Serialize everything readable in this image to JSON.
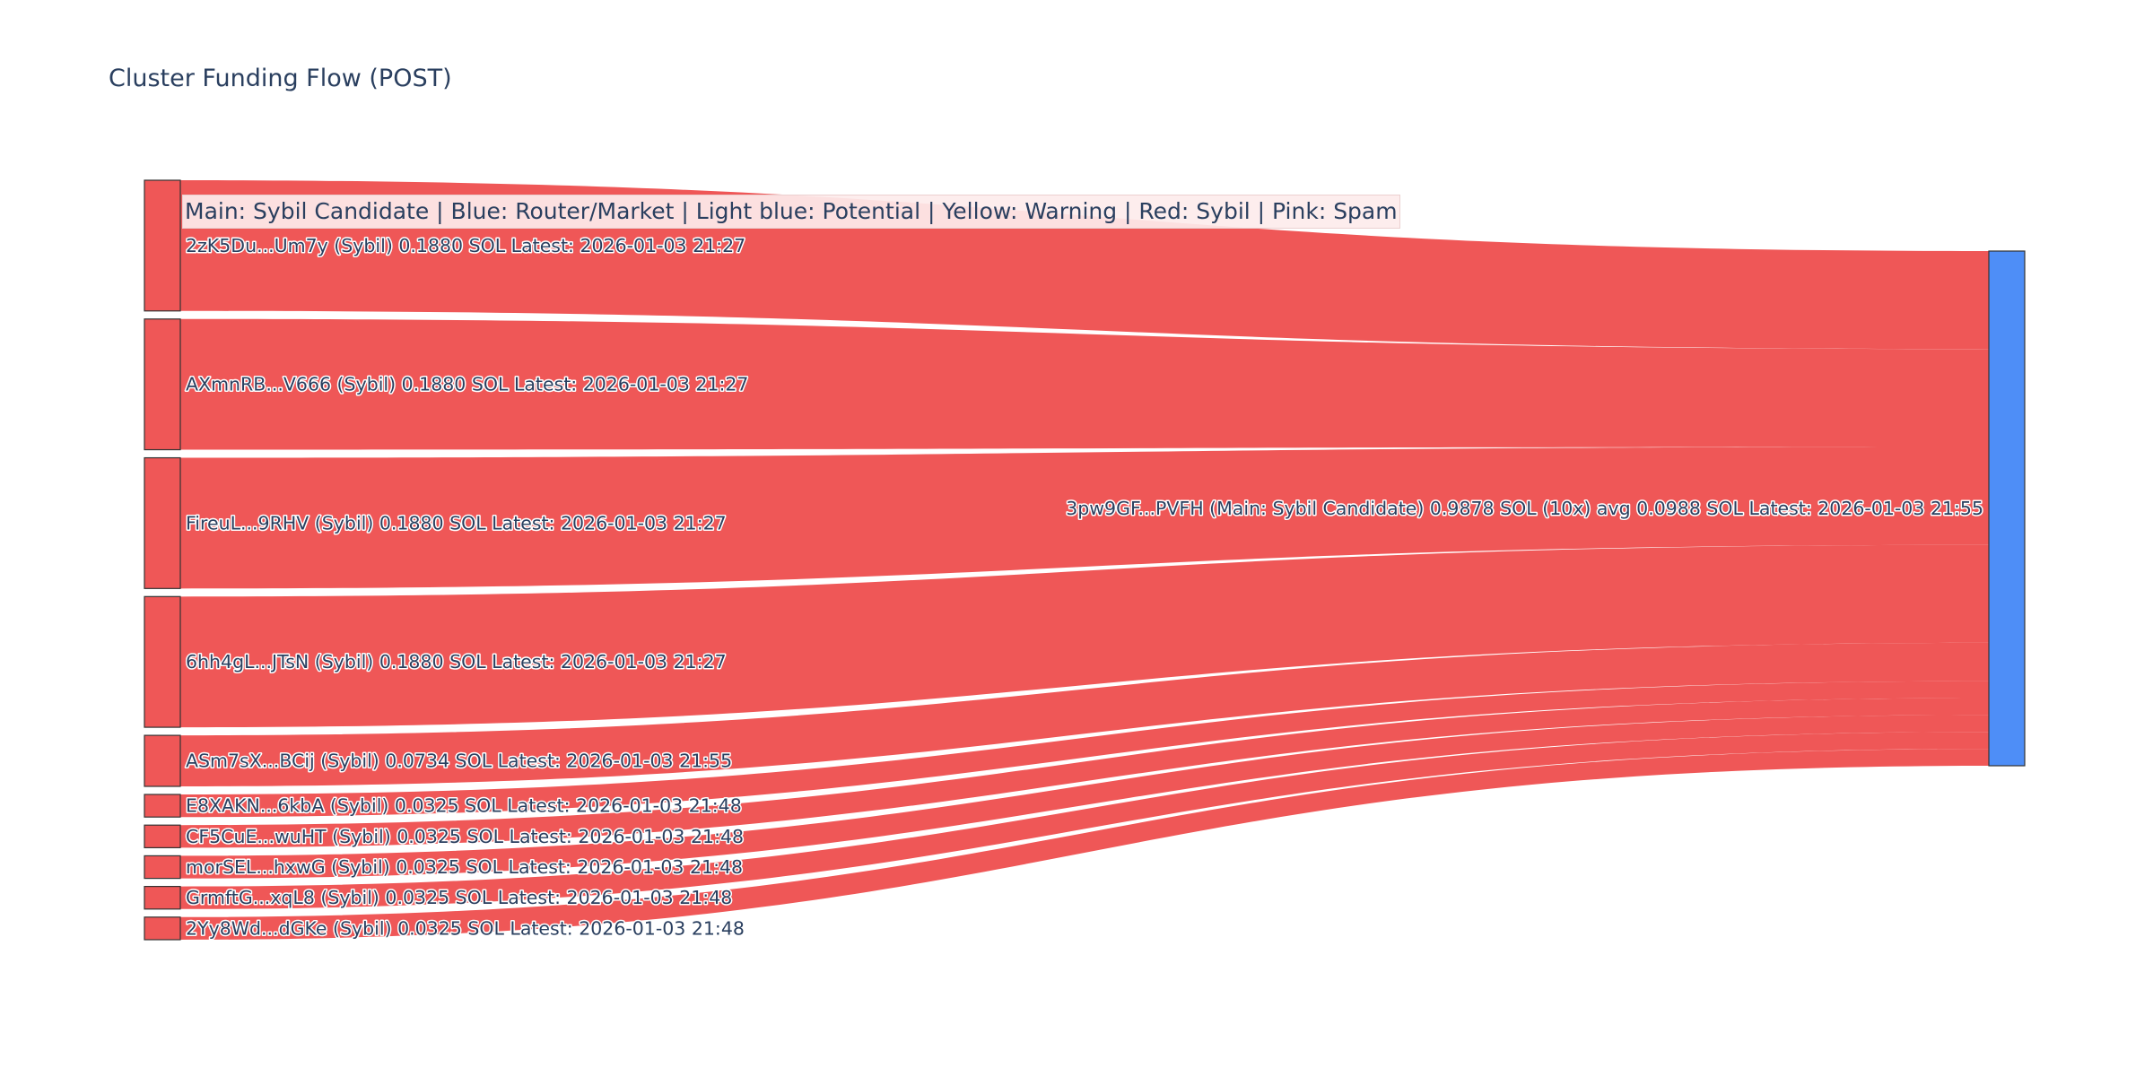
{
  "chart_data": {
    "type": "sankey",
    "title": "Cluster Funding Flow (POST)",
    "legend_text": "Main: Sybil Candidate  |  Blue: Router/Market | Light blue: Potential | Yellow: Warning | Red: Sybil | Pink: Spam",
    "colors": {
      "sybil": "#ef5757",
      "router": "#4e8ef7",
      "node_border": "#333333"
    },
    "target": {
      "id": "3pw9GF...PVFH",
      "label": "3pw9GF...PVFH (Main: Sybil Candidate) 0.9878 SOL (10x) avg 0.0988 SOL Latest: 2026-01-03 21:55",
      "value": 0.9878,
      "color": "router"
    },
    "sources": [
      {
        "id": "2zK5Du...Um7y",
        "label": "2zK5Du...Um7y (Sybil) 0.1880 SOL Latest: 2026-01-03 21:27",
        "value": 0.188,
        "color": "sybil"
      },
      {
        "id": "AXmnRB...V666",
        "label": "AXmnRB...V666 (Sybil) 0.1880 SOL Latest: 2026-01-03 21:27",
        "value": 0.188,
        "color": "sybil"
      },
      {
        "id": "FireuL...9RHV",
        "label": "FireuL...9RHV (Sybil) 0.1880 SOL Latest: 2026-01-03 21:27",
        "value": 0.188,
        "color": "sybil"
      },
      {
        "id": "6hh4gL...JTsN",
        "label": "6hh4gL...JTsN (Sybil) 0.1880 SOL Latest: 2026-01-03 21:27",
        "value": 0.188,
        "color": "sybil"
      },
      {
        "id": "ASm7sX...BCij",
        "label": "ASm7sX...BCij (Sybil) 0.0734 SOL Latest: 2026-01-03 21:55",
        "value": 0.0734,
        "color": "sybil"
      },
      {
        "id": "E8XAKN...6kbA",
        "label": "E8XAKN...6kbA (Sybil) 0.0325 SOL Latest: 2026-01-03 21:48",
        "value": 0.0325,
        "color": "sybil"
      },
      {
        "id": "CF5CuE...wuHT",
        "label": "CF5CuE...wuHT (Sybil) 0.0325 SOL Latest: 2026-01-03 21:48",
        "value": 0.0325,
        "color": "sybil"
      },
      {
        "id": "morSEL...hxwG",
        "label": "morSEL...hxwG (Sybil) 0.0325 SOL Latest: 2026-01-03 21:48",
        "value": 0.0325,
        "color": "sybil"
      },
      {
        "id": "GrmftG...xqL8",
        "label": "GrmftG...xqL8 (Sybil) 0.0325 SOL Latest: 2026-01-03 21:48",
        "value": 0.0325,
        "color": "sybil"
      },
      {
        "id": "2Yy8Wd...dGKe",
        "label": "2Yy8Wd...dGKe (Sybil) 0.0325 SOL Latest: 2026-01-03 21:48",
        "value": 0.0325,
        "color": "sybil"
      }
    ]
  }
}
